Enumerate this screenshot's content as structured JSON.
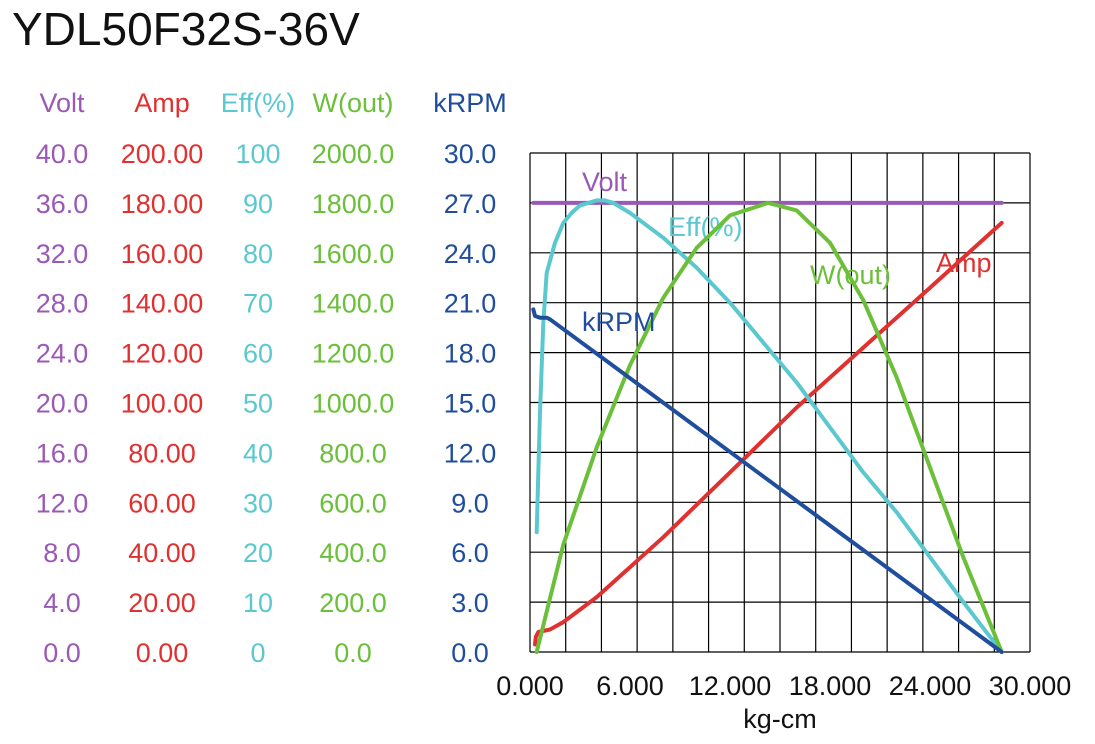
{
  "title": "YDL50F32S-36V",
  "chart_data": {
    "type": "line",
    "title": "YDL50F32S-36V",
    "xlabel": "kg-cm",
    "xlim": [
      0,
      30
    ],
    "x_ticks": [
      "0.000",
      "6.000",
      "12.000",
      "18.000",
      "24.000",
      "30.000"
    ],
    "x_gridlines": 14,
    "y_gridlines": 10,
    "grid": true,
    "axes": [
      {
        "name": "Volt",
        "color": "#9b59b6",
        "min": 0,
        "max": 40,
        "ticks": [
          "0.0",
          "4.0",
          "8.0",
          "12.0",
          "16.0",
          "20.0",
          "24.0",
          "28.0",
          "32.0",
          "36.0",
          "40.0"
        ]
      },
      {
        "name": "Amp",
        "color": "#e03131",
        "min": 0,
        "max": 200,
        "ticks": [
          "0.00",
          "20.00",
          "40.00",
          "60.00",
          "80.00",
          "100.00",
          "120.00",
          "140.00",
          "160.00",
          "180.00",
          "200.00"
        ]
      },
      {
        "name": "Eff(%)",
        "color": "#5bc8d0",
        "min": 0,
        "max": 100,
        "ticks": [
          "0",
          "10",
          "20",
          "30",
          "40",
          "50",
          "60",
          "70",
          "80",
          "90",
          "100"
        ]
      },
      {
        "name": "W(out)",
        "color": "#6cbf3a",
        "min": 0,
        "max": 2000,
        "ticks": [
          "0.0",
          "200.0",
          "400.0",
          "600.0",
          "800.0",
          "1000.0",
          "1200.0",
          "1400.0",
          "1600.0",
          "1800.0",
          "2000.0"
        ]
      },
      {
        "name": "kRPM",
        "color": "#1f4e9c",
        "min": 0,
        "max": 30,
        "ticks": [
          "0.0",
          "3.0",
          "6.0",
          "9.0",
          "12.0",
          "15.0",
          "18.0",
          "21.0",
          "24.0",
          "27.0",
          "30.0"
        ]
      }
    ],
    "series": [
      {
        "name": "Volt",
        "axis": 0,
        "color": "#9b59b6",
        "label": "Volt",
        "x": [
          0.2,
          28.3
        ],
        "y": [
          36.0,
          36.0
        ]
      },
      {
        "name": "Amp",
        "axis": 1,
        "color": "#e03131",
        "label": "Amp",
        "x": [
          0.3,
          0.35,
          0.5,
          1.2,
          2,
          4,
          8,
          12,
          16,
          20,
          24,
          28.3
        ],
        "y": [
          3,
          6,
          8,
          9,
          12,
          22,
          46,
          72,
          98,
          122,
          146,
          172
        ]
      },
      {
        "name": "Eff(%)",
        "axis": 2,
        "color": "#5bc8d0",
        "label": "Eff(%)",
        "x": [
          0.4,
          0.5,
          0.6,
          0.8,
          1.0,
          1.5,
          2.0,
          2.5,
          3.0,
          3.5,
          4.0,
          4.5,
          5.0,
          6.0,
          8.0,
          10.0,
          12.0,
          14.0,
          16.0,
          18.0,
          20.0,
          22.0,
          24.0,
          26.0,
          28.3
        ],
        "y": [
          24,
          36,
          48,
          66,
          76,
          82,
          86,
          88,
          89.5,
          90,
          90.5,
          90.5,
          90,
          88,
          83,
          77,
          70,
          62,
          54,
          45,
          36,
          28,
          19,
          10,
          0
        ]
      },
      {
        "name": "W(out)",
        "axis": 3,
        "color": "#6cbf3a",
        "label": "W(out)",
        "x": [
          0.4,
          2,
          4,
          6,
          8,
          10,
          12,
          14.3,
          16,
          18,
          20,
          22,
          24,
          26,
          28.3
        ],
        "y": [
          0,
          430,
          820,
          1150,
          1420,
          1620,
          1750,
          1800,
          1770,
          1640,
          1410,
          1100,
          740,
          380,
          0
        ]
      },
      {
        "name": "kRPM",
        "axis": 4,
        "color": "#1f4e9c",
        "label": "kRPM",
        "x": [
          0.2,
          0.3,
          0.6,
          1.0,
          1.2,
          28.3
        ],
        "y": [
          20.6,
          20.2,
          20.1,
          20.1,
          20.0,
          0
        ]
      }
    ]
  }
}
